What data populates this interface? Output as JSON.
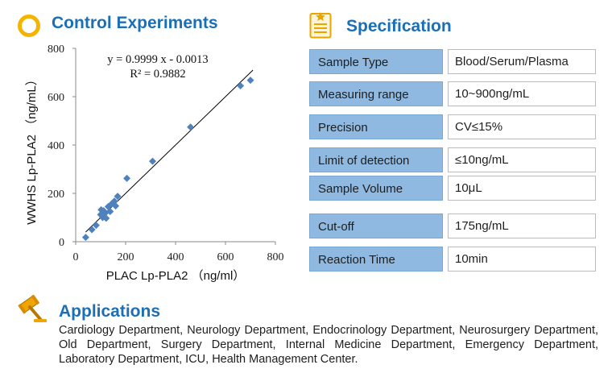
{
  "control": {
    "title": "Control Experiments"
  },
  "spec": {
    "title": "Specification",
    "rows": [
      {
        "label": "Sample  Type",
        "value": "Blood/Serum/Plasma"
      },
      {
        "label": "Measuring range",
        "value": "10~900ng/mL"
      },
      {
        "label": "Precision",
        "value": "CV≤15%"
      },
      {
        "label": "Limit of detection",
        "value": "≤10ng/mL"
      },
      {
        "label": "Sample  Volume",
        "value": "10μL"
      },
      {
        "label": "Cut-off",
        "value": "175ng/mL"
      },
      {
        "label": "Reaction Time",
        "value": "10min"
      }
    ]
  },
  "apps": {
    "title": "Applications",
    "text": "Cardiology Department, Neurology Department, Endocrinology Department, Neurosurgery Department, Old Department, Surgery Department, Internal Medicine Department, Emergency Department, Laboratory Department, ICU, Health Management Center."
  },
  "icons": {
    "control": "ring-icon",
    "spec": "clipboard-icon",
    "apps": "gavel-icon"
  },
  "colors": {
    "heading": "#1a6fb5",
    "label_fill": "#8fb9e0",
    "marker": "#4f81bd",
    "ring": "#f5b400"
  },
  "chart_data": {
    "type": "scatter",
    "xlabel": "PLAC Lp-PLA2 （ng/ml）",
    "ylabel": "WWHS Lp-PLA2 （ng/mL）",
    "xlim": [
      0,
      800
    ],
    "ylim": [
      0,
      800
    ],
    "xticks": [
      "0",
      "200",
      "400",
      "600",
      "800"
    ],
    "yticks": [
      "0",
      "200",
      "400",
      "600",
      "800"
    ],
    "equation": "y = 0.9999 x - 0.0013",
    "r_squared": "R² = 0.9882",
    "trendline": {
      "slope": 0.9999,
      "intercept": -0.0013
    },
    "points": [
      {
        "x": 40,
        "y": 18
      },
      {
        "x": 65,
        "y": 50
      },
      {
        "x": 82,
        "y": 68
      },
      {
        "x": 100,
        "y": 112
      },
      {
        "x": 108,
        "y": 100
      },
      {
        "x": 112,
        "y": 128
      },
      {
        "x": 118,
        "y": 118
      },
      {
        "x": 122,
        "y": 97
      },
      {
        "x": 130,
        "y": 145
      },
      {
        "x": 138,
        "y": 125
      },
      {
        "x": 145,
        "y": 158
      },
      {
        "x": 155,
        "y": 168
      },
      {
        "x": 160,
        "y": 148
      },
      {
        "x": 168,
        "y": 188
      },
      {
        "x": 102,
        "y": 132
      },
      {
        "x": 205,
        "y": 262
      },
      {
        "x": 308,
        "y": 333
      },
      {
        "x": 460,
        "y": 474
      },
      {
        "x": 660,
        "y": 645
      },
      {
        "x": 700,
        "y": 668
      }
    ]
  }
}
